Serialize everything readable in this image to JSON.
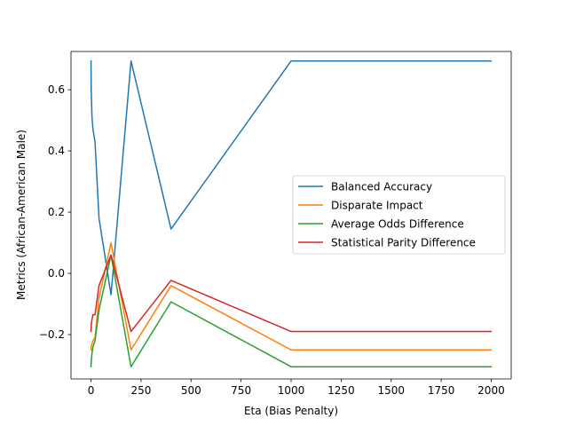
{
  "chart_data": {
    "type": "line",
    "title": "",
    "xlabel": "Eta (Bias Penalty)",
    "ylabel": "Metrics (African-American Male)",
    "xlim": [
      -100,
      2100
    ],
    "ylim": [
      -0.345,
      0.725
    ],
    "xticks": [
      0,
      250,
      500,
      750,
      1000,
      1250,
      1500,
      1750,
      2000
    ],
    "yticks": [
      -0.2,
      0.0,
      0.2,
      0.4,
      0.6
    ],
    "ytick_labels": [
      "−0.2",
      "0.0",
      "0.2",
      "0.4",
      "0.6"
    ],
    "grid": false,
    "legend_position": "center-right",
    "x": [
      0,
      1,
      5,
      10,
      20,
      40,
      100,
      200,
      400,
      1000,
      2000
    ],
    "series": [
      {
        "name": "Balanced Accuracy",
        "color": "#1f77b4",
        "values": [
          0.694,
          0.6,
          0.51,
          0.47,
          0.43,
          0.18,
          -0.07,
          0.694,
          0.145,
          0.694,
          0.694
        ]
      },
      {
        "name": "Disparate Impact",
        "color": "#ff7f0e",
        "values": [
          -0.25,
          -0.24,
          -0.23,
          -0.22,
          -0.21,
          -0.08,
          0.1,
          -0.25,
          -0.04,
          -0.25,
          -0.25
        ]
      },
      {
        "name": "Average Odds Difference",
        "color": "#2ca02c",
        "values": [
          -0.305,
          -0.29,
          -0.26,
          -0.24,
          -0.22,
          -0.12,
          0.06,
          -0.305,
          -0.093,
          -0.305,
          -0.305
        ]
      },
      {
        "name": "Statistical Parity Difference",
        "color": "#d62728",
        "values": [
          -0.19,
          -0.17,
          -0.15,
          -0.135,
          -0.135,
          -0.04,
          0.06,
          -0.19,
          -0.023,
          -0.19,
          -0.19
        ]
      }
    ]
  }
}
